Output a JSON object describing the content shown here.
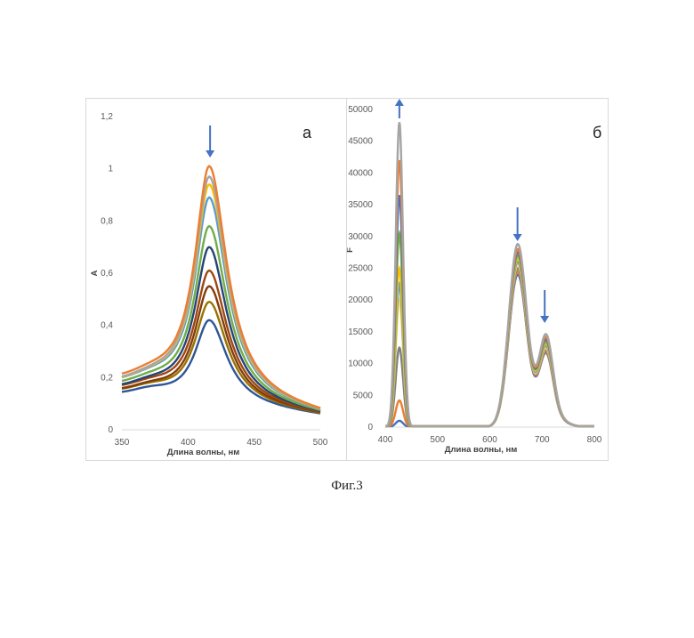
{
  "caption": "Фиг.3",
  "chart_data": [
    {
      "type": "line",
      "panel_label": "а",
      "xlabel": "Длина волны, нм",
      "ylabel": "A",
      "xlim": [
        350,
        500
      ],
      "ylim": [
        0,
        1.2
      ],
      "x_ticks": [
        "350",
        "400",
        "450",
        "500"
      ],
      "y_ticks": [
        "0",
        "0,2",
        "0,4",
        "0,6",
        "0,8",
        "1",
        "1,2"
      ],
      "grid": false,
      "peak_wavelength": 416,
      "arrow_direction": "down",
      "series": [
        {
          "values": {
            "peak": 1.01,
            "base350": 0.18,
            "end500": 0.05
          },
          "color": "#ed7d31"
        },
        {
          "values": {
            "peak": 0.97,
            "base350": 0.17,
            "end500": 0.05
          },
          "color": "#a5a5a5"
        },
        {
          "values": {
            "peak": 0.94,
            "base350": 0.17,
            "end500": 0.05
          },
          "color": "#ffc000"
        },
        {
          "values": {
            "peak": 0.89,
            "base350": 0.17,
            "end500": 0.05
          },
          "color": "#5b9bd5"
        },
        {
          "values": {
            "peak": 0.78,
            "base350": 0.16,
            "end500": 0.05
          },
          "color": "#70ad47"
        },
        {
          "values": {
            "peak": 0.7,
            "base350": 0.15,
            "end500": 0.05
          },
          "color": "#264478"
        },
        {
          "values": {
            "peak": 0.61,
            "base350": 0.15,
            "end500": 0.05
          },
          "color": "#9e480e"
        },
        {
          "values": {
            "peak": 0.55,
            "base350": 0.14,
            "end500": 0.05
          },
          "color": "#843c0c"
        },
        {
          "values": {
            "peak": 0.49,
            "base350": 0.14,
            "end500": 0.05
          },
          "color": "#997300"
        },
        {
          "values": {
            "peak": 0.42,
            "base350": 0.13,
            "end500": 0.05
          },
          "color": "#2f5597"
        }
      ]
    },
    {
      "type": "line",
      "panel_label": "б",
      "xlabel": "Длина волны, нм",
      "ylabel": "F",
      "xlim": [
        400,
        800
      ],
      "ylim": [
        0,
        50000
      ],
      "x_ticks": [
        "400",
        "500",
        "600",
        "700",
        "800"
      ],
      "y_ticks": [
        "0",
        "5000",
        "10000",
        "15000",
        "20000",
        "25000",
        "30000",
        "35000",
        "40000",
        "45000",
        "50000"
      ],
      "grid": false,
      "arrows": [
        {
          "x": 427,
          "direction": "up"
        },
        {
          "x": 653,
          "direction": "down"
        },
        {
          "x": 705,
          "direction": "down"
        }
      ],
      "series": [
        {
          "values": {
            "peak427": 48000,
            "peak653": 28800,
            "peak705": 15500
          },
          "color": "#a5a5a5"
        },
        {
          "values": {
            "peak427": 42000,
            "peak653": 28000,
            "peak705": 15000
          },
          "color": "#ed7d31"
        },
        {
          "values": {
            "peak427": 36500,
            "peak653": 27500,
            "peak705": 14600
          },
          "color": "#4472c4"
        },
        {
          "values": {
            "peak427": 30500,
            "peak653": 27000,
            "peak705": 14200
          },
          "color": "#70ad47"
        },
        {
          "values": {
            "peak427": 25000,
            "peak653": 26500,
            "peak705": 13800
          },
          "color": "#ffc000"
        },
        {
          "values": {
            "peak427": 22500,
            "peak653": 26000,
            "peak705": 13400
          },
          "color": "#5b9bd5"
        },
        {
          "values": {
            "peak427": 20000,
            "peak653": 25500,
            "peak705": 13000
          },
          "color": "#ffd966"
        },
        {
          "values": {
            "peak427": 12500,
            "peak653": 25000,
            "peak705": 12700
          },
          "color": "#7f7f7f"
        },
        {
          "values": {
            "peak427": 4200,
            "peak653": 24500,
            "peak705": 12400
          },
          "color": "#ed7d31"
        },
        {
          "values": {
            "peak427": 1000,
            "peak653": 24000,
            "peak705": 12200
          },
          "color": "#4472c4"
        }
      ]
    }
  ]
}
